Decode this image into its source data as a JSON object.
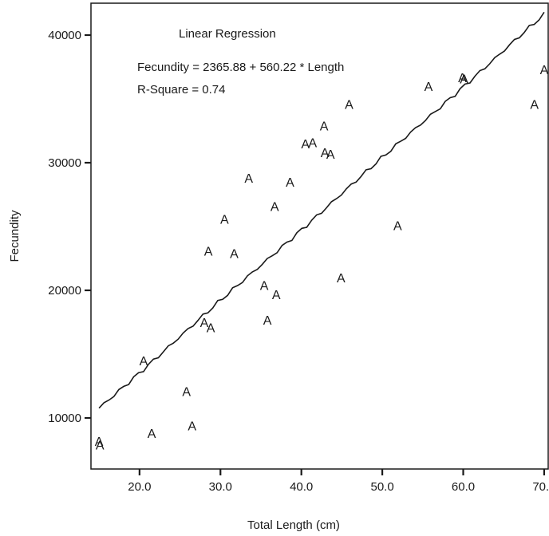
{
  "chart_data": {
    "type": "scatter",
    "title": "",
    "xlabel": "Total Length (cm)",
    "ylabel": "Fecundity",
    "xlim": [
      14,
      70.5
    ],
    "ylim": [
      6000,
      42500
    ],
    "x_ticks": [
      20.0,
      30.0,
      40.0,
      50.0,
      60.0,
      70.0
    ],
    "x_tick_labels": [
      "20.0",
      "30.0",
      "40.0",
      "50.0",
      "60.0",
      "70.0"
    ],
    "y_ticks": [
      10000,
      20000,
      30000,
      40000
    ],
    "y_tick_labels": [
      "10000",
      "20000",
      "30000",
      "40000"
    ],
    "grid": false,
    "marker_symbol": "A",
    "annotations": [
      "Linear Regression",
      "Fecundity = 2365.88 + 560.22 * Length",
      "R-Square = 0.74"
    ],
    "regression": {
      "intercept": 2365.88,
      "slope": 560.22,
      "x_range": [
        15.0,
        70.0
      ]
    },
    "points": [
      {
        "x": 15.0,
        "y": 8200
      },
      {
        "x": 15.1,
        "y": 7900
      },
      {
        "x": 20.5,
        "y": 14500
      },
      {
        "x": 21.5,
        "y": 8800
      },
      {
        "x": 25.8,
        "y": 12100
      },
      {
        "x": 26.5,
        "y": 9400
      },
      {
        "x": 28.0,
        "y": 17500
      },
      {
        "x": 28.5,
        "y": 23100
      },
      {
        "x": 28.8,
        "y": 17100
      },
      {
        "x": 30.5,
        "y": 25600
      },
      {
        "x": 31.7,
        "y": 22900
      },
      {
        "x": 33.5,
        "y": 28800
      },
      {
        "x": 35.4,
        "y": 20400
      },
      {
        "x": 35.8,
        "y": 17700
      },
      {
        "x": 36.7,
        "y": 26600
      },
      {
        "x": 36.9,
        "y": 19700
      },
      {
        "x": 38.6,
        "y": 28500
      },
      {
        "x": 40.5,
        "y": 31500
      },
      {
        "x": 41.4,
        "y": 31600
      },
      {
        "x": 42.8,
        "y": 32900
      },
      {
        "x": 42.9,
        "y": 30800
      },
      {
        "x": 43.6,
        "y": 30700
      },
      {
        "x": 44.9,
        "y": 21000
      },
      {
        "x": 45.9,
        "y": 34600
      },
      {
        "x": 51.9,
        "y": 25100
      },
      {
        "x": 55.7,
        "y": 36000
      },
      {
        "x": 59.9,
        "y": 36700
      },
      {
        "x": 60.1,
        "y": 36600
      },
      {
        "x": 68.8,
        "y": 34600
      },
      {
        "x": 70.0,
        "y": 37300
      }
    ]
  }
}
